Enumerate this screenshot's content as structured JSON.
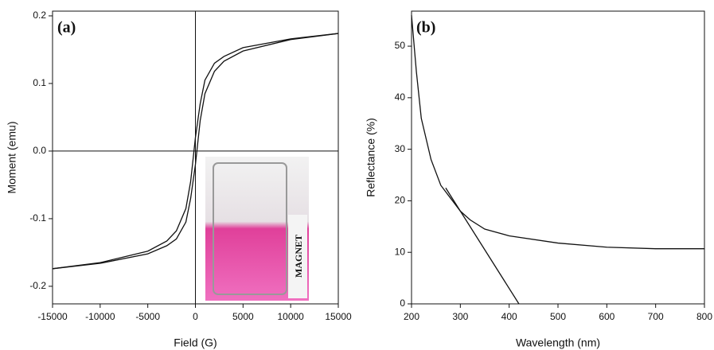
{
  "chart_data": [
    {
      "type": "line",
      "panel_label": "(a)",
      "x_label": "Field (G)",
      "y_label": "Moment (emu)",
      "inset_label": "MAGNET",
      "x": [
        -15000,
        -10000,
        -5000,
        -3000,
        -2000,
        -1000,
        -500,
        0,
        500,
        1000,
        2000,
        3000,
        5000,
        10000,
        15000
      ],
      "series": [
        {
          "color": "#111111",
          "values": [
            -0.174,
            -0.165,
            -0.148,
            -0.133,
            -0.118,
            -0.085,
            -0.045,
            0.02,
            0.07,
            0.105,
            0.13,
            0.14,
            0.153,
            0.166,
            0.174
          ]
        },
        {
          "color": "#111111",
          "values": [
            -0.174,
            -0.166,
            -0.152,
            -0.14,
            -0.13,
            -0.105,
            -0.07,
            -0.02,
            0.045,
            0.085,
            0.118,
            0.133,
            0.148,
            0.165,
            0.174
          ]
        }
      ],
      "xlim": [
        -15000,
        15000
      ],
      "ylim": [
        -0.226,
        0.207
      ],
      "xticks": [
        -15000,
        -10000,
        -5000,
        0,
        5000,
        10000,
        15000
      ],
      "yticks": [
        -0.2,
        -0.1,
        {
          "value": 0,
          "label": "0.0"
        },
        0.1,
        0.2
      ]
    },
    {
      "type": "line",
      "panel_label": "(b)",
      "x_label": "Wavelength (nm)",
      "y_label": "Reflectance (%)",
      "series": [
        {
          "color": "#111111",
          "x": [
            200,
            210,
            220,
            240,
            260,
            280,
            300,
            320,
            350,
            400,
            500,
            600,
            700,
            800
          ],
          "values": [
            56,
            45,
            36,
            28,
            23,
            20.5,
            18,
            16.3,
            14.5,
            13.2,
            11.8,
            11,
            10.7,
            10.7
          ]
        },
        {
          "color": "#111111",
          "x": [
            270,
            420
          ],
          "values": [
            22.5,
            0
          ]
        }
      ],
      "xlim": [
        200,
        800
      ],
      "ylim": [
        0,
        56.8
      ],
      "xticks": [
        200,
        300,
        400,
        500,
        600,
        700,
        800
      ],
      "yticks": [
        0,
        10,
        20,
        30,
        40,
        50
      ]
    }
  ]
}
